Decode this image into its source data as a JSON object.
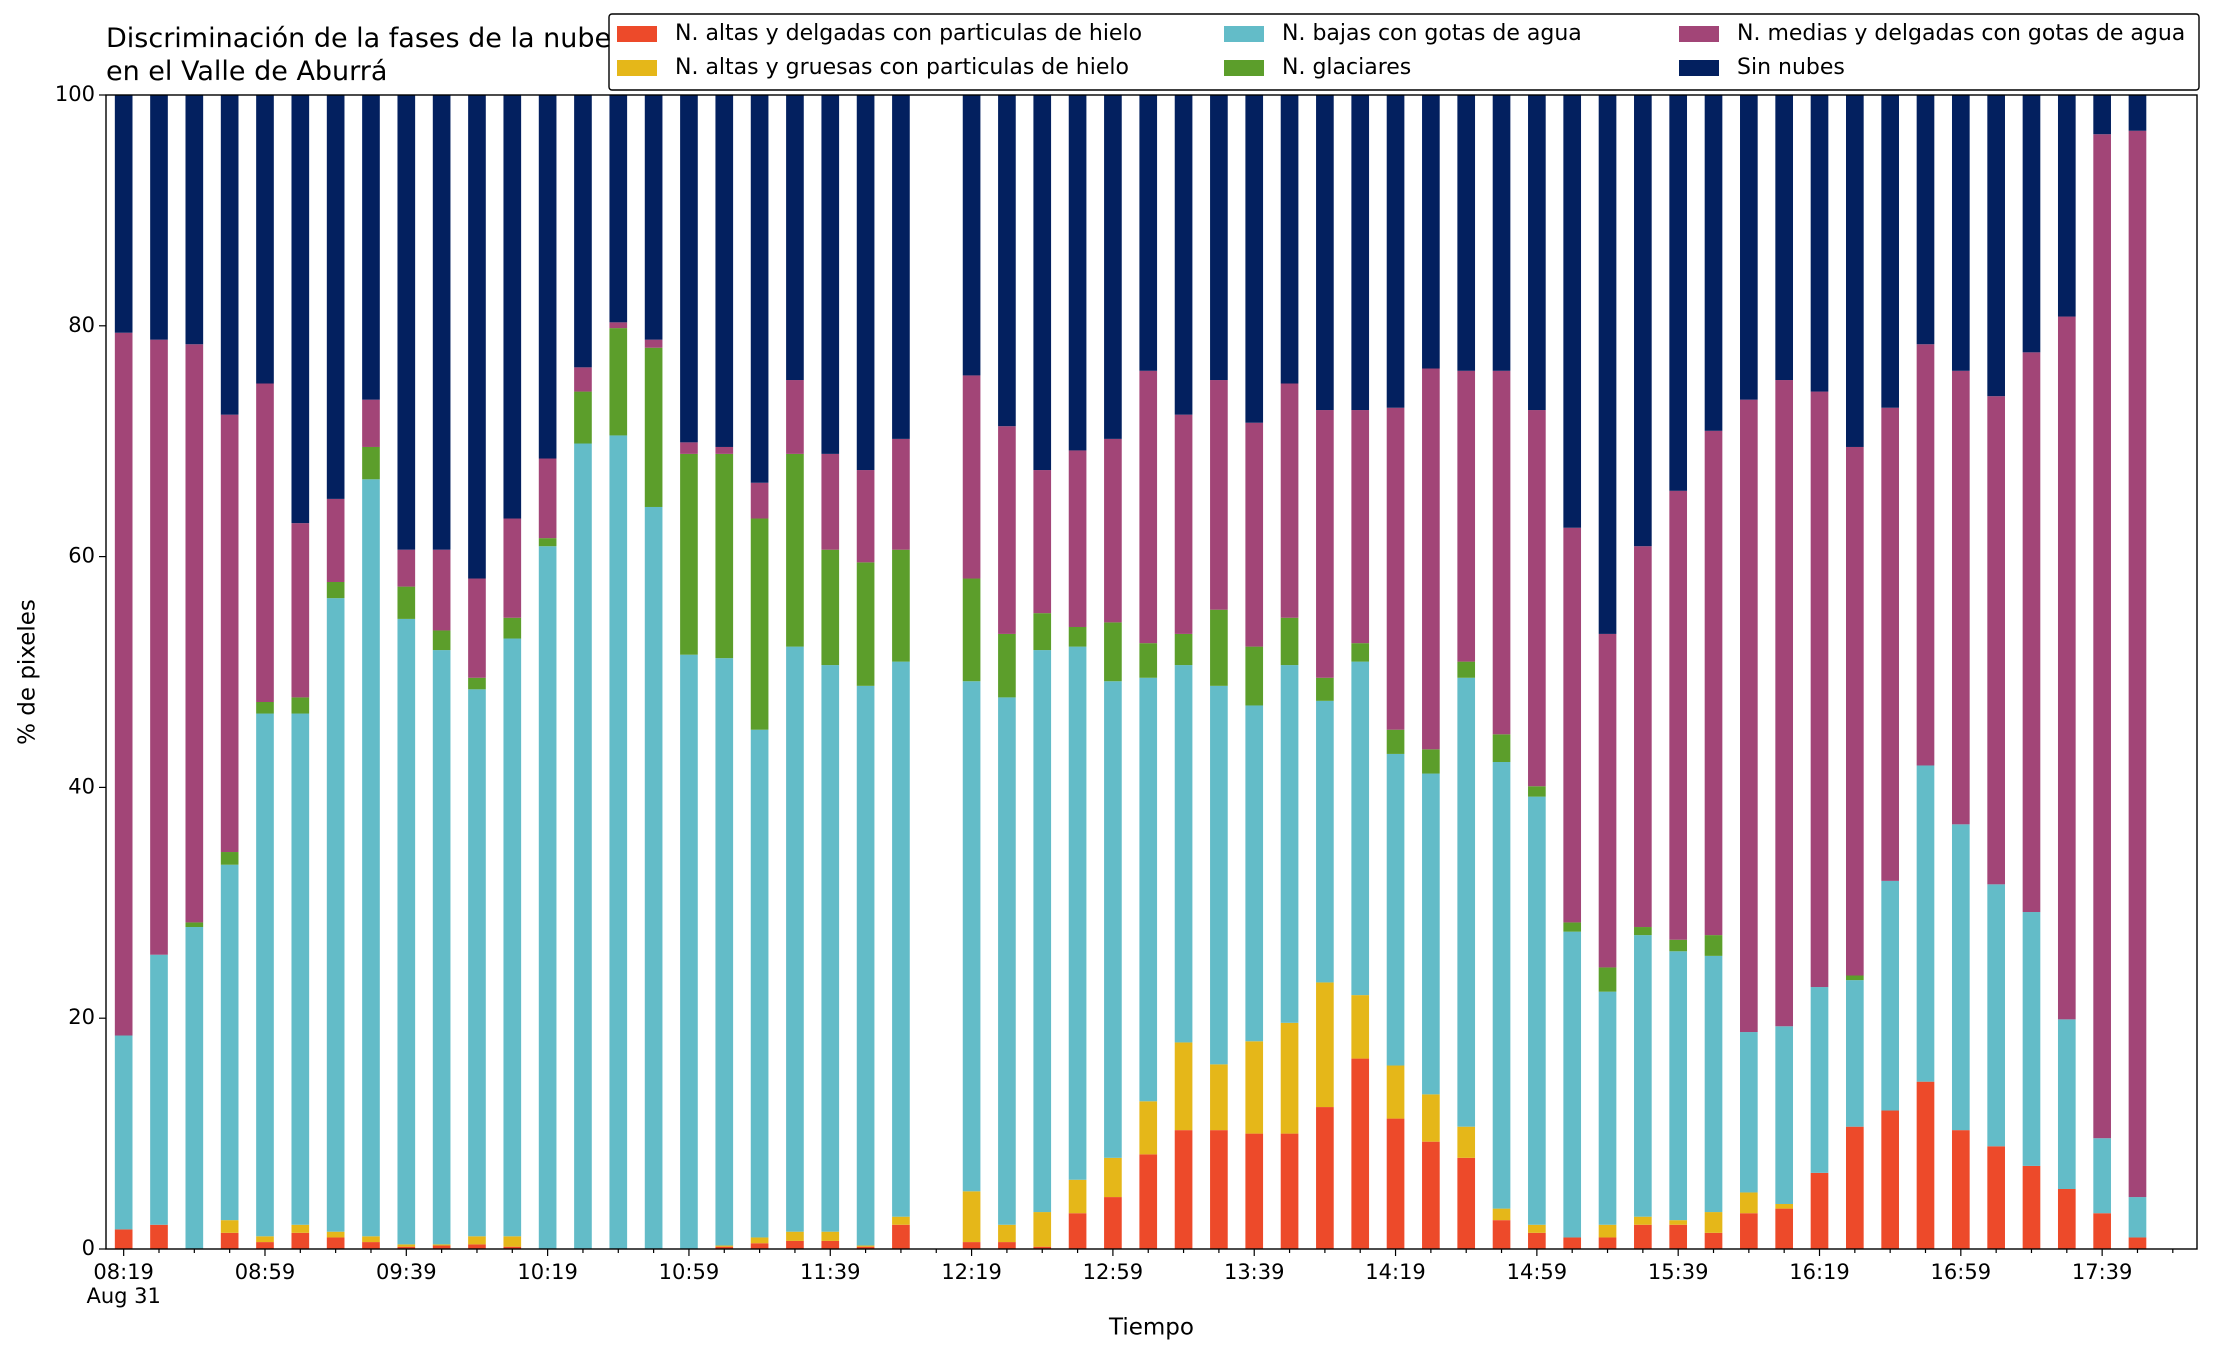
{
  "chart_data": {
    "type": "stacked_bar",
    "title": "Discriminación de la fases de la nube en el Valle de Aburrá",
    "x_label": "Tiempo",
    "y_label": "% de pixeles",
    "x_sublabel": "Aug 31",
    "categories": [
      "08:19",
      null,
      null,
      null,
      "08:59",
      null,
      null,
      null,
      "09:39",
      null,
      null,
      null,
      "10:19",
      null,
      null,
      null,
      "10:59",
      null,
      null,
      null,
      "11:39",
      null,
      null,
      null,
      "12:19",
      null,
      null,
      null,
      "12:59",
      null,
      null,
      null,
      "13:39",
      null,
      null,
      null,
      "14:19",
      null,
      null,
      null,
      "14:59",
      null,
      null,
      null,
      "15:39",
      null,
      null,
      null,
      "16:19",
      null,
      null,
      null,
      "16:59",
      null,
      null,
      null,
      "17:39",
      null
    ],
    "ylim": [
      0,
      100
    ],
    "yticks": [
      0,
      20,
      40,
      60,
      80,
      100
    ],
    "legend": "upper right",
    "series": [
      {
        "name": "N. altas y delgadas con particulas de hielo",
        "color": "#ed4a2a",
        "values": [
          1.7,
          2.1,
          0,
          1.4,
          0.6,
          1.4,
          1.0,
          0.6,
          0.2,
          0.3,
          0.4,
          0.2,
          0,
          0,
          0,
          0,
          0,
          0.2,
          0.5,
          0.7,
          0.7,
          0.2,
          2.1,
          null,
          0.6,
          0.6,
          0.2,
          3.1,
          4.5,
          8.2,
          10.3,
          10.3,
          10.0,
          10.0,
          12.3,
          16.5,
          11.3,
          9.3,
          7.9,
          2.5,
          1.4,
          1.0,
          1.0,
          2.1,
          2.1,
          1.4,
          3.1,
          3.5,
          6.6,
          10.6,
          12.0,
          14.5,
          10.3,
          8.9,
          7.2,
          5.2,
          3.1,
          1.0
        ]
      },
      {
        "name": "N. altas y gruesas con particulas de hielo",
        "color": "#e5b719",
        "values": [
          0,
          0,
          0,
          1.1,
          0.5,
          0.7,
          0.5,
          0.5,
          0.2,
          0.1,
          0.7,
          0.9,
          0,
          0,
          0,
          0,
          0,
          0.1,
          0.5,
          0.8,
          0.8,
          0.1,
          0.7,
          null,
          4.4,
          1.5,
          3.0,
          2.9,
          3.4,
          4.6,
          7.6,
          5.7,
          8.0,
          9.6,
          10.8,
          5.5,
          4.6,
          4.1,
          2.7,
          1.0,
          0.7,
          0,
          1.1,
          0.7,
          0.4,
          1.8,
          1.8,
          0.4,
          0,
          0,
          0,
          0,
          0,
          0,
          0,
          0,
          0,
          0
        ]
      },
      {
        "name": "N. bajas con gotas de agua",
        "color": "#63bcc8",
        "values": [
          16.8,
          23.4,
          27.9,
          30.8,
          45.3,
          44.3,
          54.9,
          65.6,
          54.2,
          51.5,
          47.4,
          51.8,
          60.9,
          69.8,
          70.5,
          64.3,
          51.5,
          50.9,
          44.0,
          50.7,
          49.1,
          48.5,
          48.1,
          null,
          44.2,
          45.7,
          48.7,
          46.2,
          41.3,
          36.7,
          32.7,
          32.8,
          29.1,
          31.0,
          24.4,
          28.9,
          27.0,
          27.8,
          38.9,
          38.7,
          37.1,
          26.5,
          20.2,
          24.4,
          23.3,
          22.2,
          13.9,
          15.4,
          16.1,
          12.7,
          19.9,
          27.4,
          26.5,
          22.7,
          22.0,
          14.7,
          6.5,
          3.5
        ]
      },
      {
        "name": "N. glaciares",
        "color": "#5c9e2b",
        "values": [
          0,
          0,
          0.4,
          1.1,
          1.0,
          1.4,
          1.4,
          2.8,
          2.8,
          1.7,
          1.0,
          1.8,
          0.7,
          4.5,
          9.3,
          13.8,
          17.4,
          17.7,
          18.3,
          16.7,
          10.0,
          10.7,
          9.7,
          null,
          8.9,
          5.5,
          3.2,
          1.7,
          5.1,
          3.0,
          2.7,
          6.6,
          5.1,
          4.1,
          2.0,
          1.6,
          2.1,
          2.1,
          1.4,
          2.4,
          0.9,
          0.8,
          2.1,
          0.7,
          1.0,
          1.8,
          0,
          0,
          0,
          0.4,
          0,
          0,
          0,
          0,
          0,
          0,
          0,
          0
        ]
      },
      {
        "name": "N. medias y delgadas con gotas de agua",
        "color": "#a24577",
        "values": [
          60.9,
          53.3,
          50.1,
          37.9,
          27.6,
          15.1,
          7.2,
          4.1,
          3.2,
          7.0,
          8.6,
          8.6,
          6.9,
          2.1,
          0.5,
          0.7,
          1.0,
          0.6,
          3.1,
          6.4,
          8.3,
          8.0,
          9.6,
          null,
          17.6,
          18.0,
          12.4,
          15.3,
          15.9,
          23.6,
          19.0,
          19.9,
          19.4,
          20.3,
          23.2,
          20.2,
          27.9,
          33.0,
          25.2,
          31.5,
          32.6,
          34.2,
          28.9,
          33.0,
          38.9,
          43.7,
          54.8,
          56.0,
          51.6,
          45.8,
          41.0,
          36.5,
          39.3,
          42.3,
          48.5,
          60.9,
          87.0,
          92.4
        ]
      },
      {
        "name": "Sin nubes",
        "color": "#03205f",
        "values": [
          20.6,
          21.2,
          21.6,
          27.7,
          25.0,
          37.1,
          35.0,
          26.4,
          39.4,
          39.4,
          41.9,
          36.7,
          31.5,
          23.6,
          19.7,
          21.2,
          30.1,
          30.5,
          33.6,
          24.7,
          31.1,
          32.5,
          29.8,
          null,
          24.3,
          28.7,
          32.5,
          30.8,
          29.8,
          23.9,
          27.7,
          24.7,
          28.4,
          25.0,
          27.3,
          27.3,
          27.1,
          23.7,
          23.9,
          23.9,
          27.3,
          37.5,
          46.7,
          39.1,
          34.3,
          29.1,
          26.4,
          24.7,
          25.7,
          30.5,
          27.1,
          21.6,
          23.9,
          26.1,
          22.3,
          19.2,
          3.4,
          3.1
        ]
      }
    ]
  }
}
